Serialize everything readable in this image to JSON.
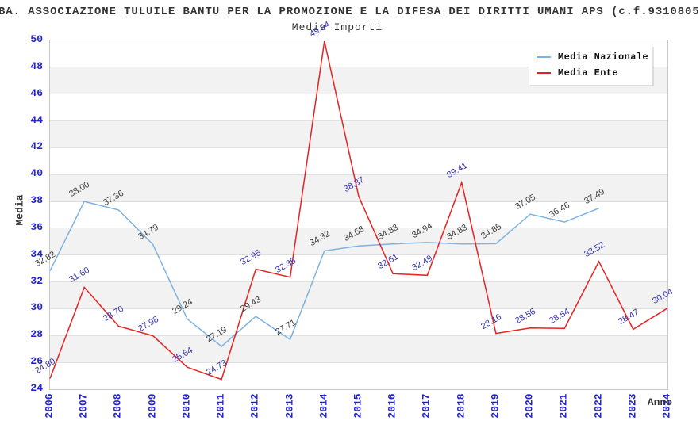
{
  "title": "BA. ASSOCIAZIONE TULUILE BANTU PER LA PROMOZIONE E LA DIFESA DEI DIRITTI UMANI APS (c.f.9310805",
  "subtitle": "Media Importi",
  "legend": {
    "items": [
      {
        "label": "Media Nazionale",
        "color": "#7eb2e0"
      },
      {
        "label": "Media Ente",
        "color": "#e62222"
      }
    ]
  },
  "axes": {
    "y_title": "Media",
    "x_title": "Anno",
    "tick_color": "#2222d6"
  },
  "colors": {
    "national_line": "#7eb2e0",
    "ente_line": "#e62222",
    "national_label": "#3c3c3c",
    "ente_label": "#3333b3",
    "band_fill": "#f2f2f2",
    "grid_line": "#e0e0e0",
    "plot_border": "#c9c9c9"
  },
  "chart_data": {
    "type": "line",
    "title": "Media Importi",
    "xlabel": "Anno",
    "ylabel": "Media",
    "ylim": [
      24,
      50
    ],
    "y_tick_step": 2,
    "y_ticks": [
      50,
      48,
      46,
      44,
      42,
      40,
      38,
      36,
      34,
      32,
      30,
      28,
      26,
      24
    ],
    "grid": "horizontal-bands-alternating",
    "legend_position": "top-right",
    "x": [
      2006,
      2007,
      2008,
      2009,
      2010,
      2011,
      2012,
      2013,
      2014,
      2015,
      2016,
      2017,
      2018,
      2019,
      2020,
      2021,
      2022,
      2023,
      2024
    ],
    "series": [
      {
        "name": "Media Nazionale",
        "color": "#7eb2e0",
        "label_color": "#3c3c3c",
        "values": [
          32.82,
          38.0,
          37.36,
          34.79,
          29.24,
          27.19,
          29.43,
          27.71,
          34.32,
          34.68,
          34.83,
          34.94,
          34.83,
          34.85,
          37.05,
          36.46,
          37.49,
          null,
          null
        ]
      },
      {
        "name": "Media Ente",
        "color": "#e62222",
        "label_color": "#3333b3",
        "values": [
          24.8,
          31.6,
          28.7,
          27.98,
          25.64,
          24.73,
          32.95,
          32.35,
          49.94,
          38.37,
          32.61,
          32.49,
          39.41,
          28.16,
          28.56,
          28.54,
          33.52,
          28.47,
          30.04
        ]
      }
    ]
  }
}
